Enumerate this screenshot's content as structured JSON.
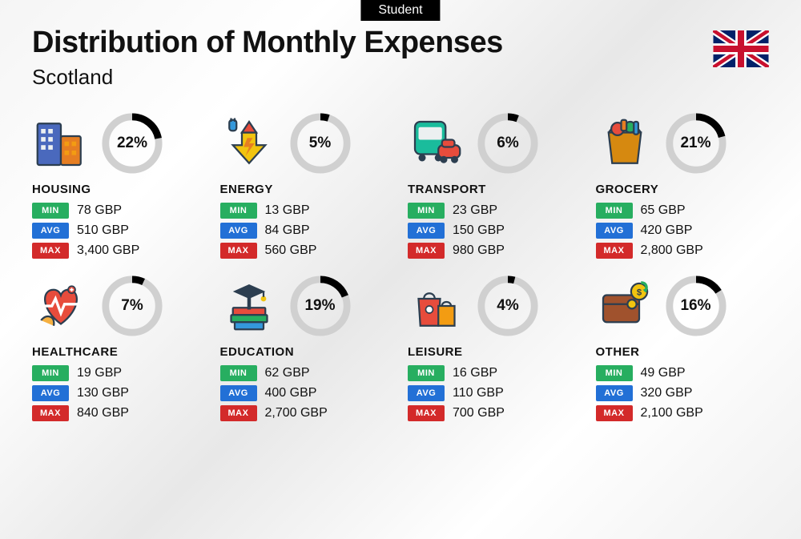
{
  "badge": "Student",
  "title": "Distribution of Monthly Expenses",
  "region": "Scotland",
  "labels": {
    "min": "MIN",
    "avg": "AVG",
    "max": "MAX"
  },
  "colors": {
    "min": "#27ae60",
    "avg": "#2270d6",
    "max": "#d32a2a",
    "donut_bg": "#d0d0d0",
    "donut_fg": "#000000"
  },
  "categories": [
    {
      "name": "HOUSING",
      "pct": 22,
      "pct_label": "22%",
      "min": "78 GBP",
      "avg": "510 GBP",
      "max": "3,400 GBP",
      "icon": "housing"
    },
    {
      "name": "ENERGY",
      "pct": 5,
      "pct_label": "5%",
      "min": "13 GBP",
      "avg": "84 GBP",
      "max": "560 GBP",
      "icon": "energy"
    },
    {
      "name": "TRANSPORT",
      "pct": 6,
      "pct_label": "6%",
      "min": "23 GBP",
      "avg": "150 GBP",
      "max": "980 GBP",
      "icon": "transport"
    },
    {
      "name": "GROCERY",
      "pct": 21,
      "pct_label": "21%",
      "min": "65 GBP",
      "avg": "420 GBP",
      "max": "2,800 GBP",
      "icon": "grocery"
    },
    {
      "name": "HEALTHCARE",
      "pct": 7,
      "pct_label": "7%",
      "min": "19 GBP",
      "avg": "130 GBP",
      "max": "840 GBP",
      "icon": "healthcare"
    },
    {
      "name": "EDUCATION",
      "pct": 19,
      "pct_label": "19%",
      "min": "62 GBP",
      "avg": "400 GBP",
      "max": "2,700 GBP",
      "icon": "education"
    },
    {
      "name": "LEISURE",
      "pct": 4,
      "pct_label": "4%",
      "min": "16 GBP",
      "avg": "110 GBP",
      "max": "700 GBP",
      "icon": "leisure"
    },
    {
      "name": "OTHER",
      "pct": 16,
      "pct_label": "16%",
      "min": "49 GBP",
      "avg": "320 GBP",
      "max": "2,100 GBP",
      "icon": "other"
    }
  ]
}
